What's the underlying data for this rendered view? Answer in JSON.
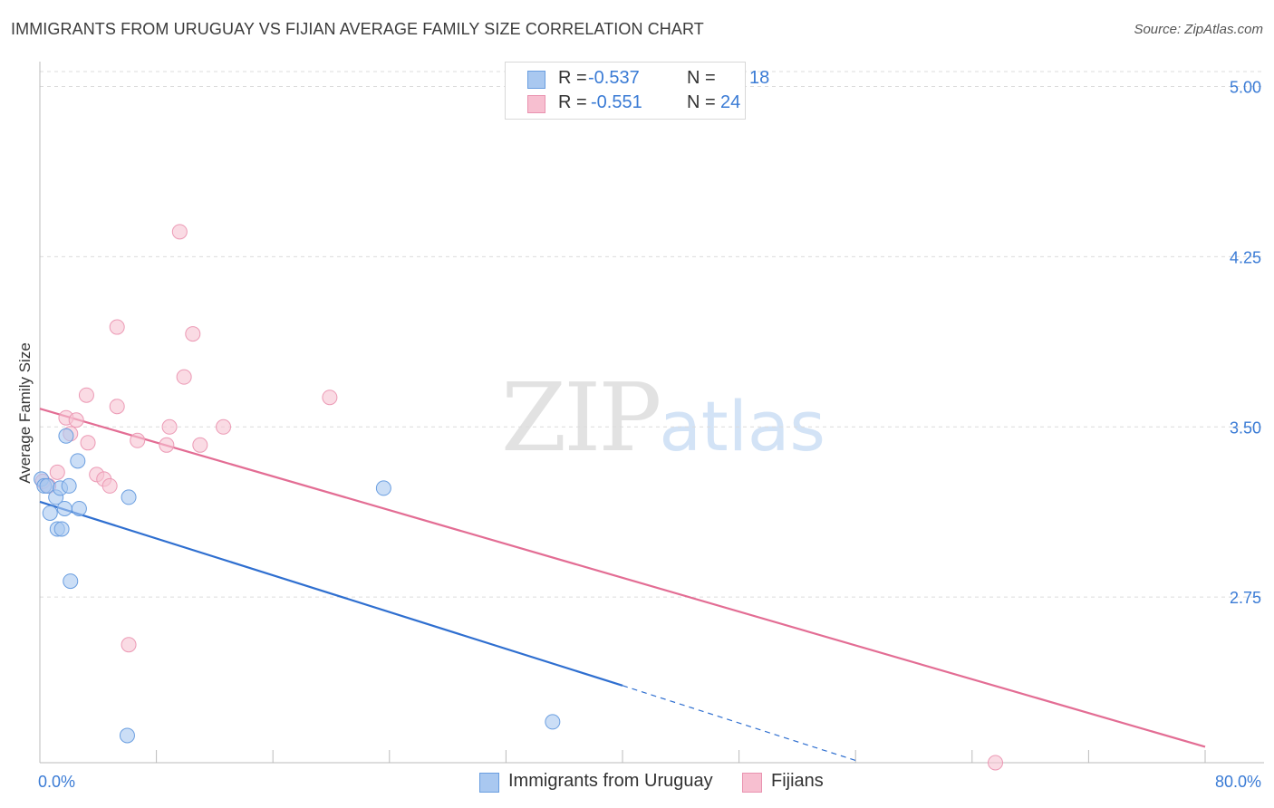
{
  "title": "IMMIGRANTS FROM URUGUAY VS FIJIAN AVERAGE FAMILY SIZE CORRELATION CHART",
  "source": "Source: ZipAtlas.com",
  "watermark": {
    "zip": "ZIP",
    "atlas": "atlas"
  },
  "legend": {
    "rows": [
      {
        "r_label": "R =",
        "r_value": "-0.537",
        "n_label": "N =",
        "n_value": "18",
        "color": "#a9c8f0",
        "border": "#6a9ee0"
      },
      {
        "r_label": "R =",
        "r_value": "-0.551",
        "n_label": "N =",
        "n_value": "24",
        "color": "#f7bfd0",
        "border": "#e993b0"
      }
    ]
  },
  "bottom_legend": [
    {
      "label": "Immigrants from Uruguay",
      "color": "#a9c8f0",
      "border": "#6a9ee0"
    },
    {
      "label": "Fijians",
      "color": "#f7bfd0",
      "border": "#e993b0"
    }
  ],
  "colors": {
    "blue_fill": "#a9c8f0",
    "blue_stroke": "#6a9ee0",
    "blue_line": "#2f6fd0",
    "pink_fill": "#f7c3d2",
    "pink_stroke": "#ec9ab5",
    "pink_line": "#e36d94",
    "axis_label": "#3a7bd5",
    "grid": "#dcdcdc"
  },
  "chart_data": {
    "type": "scatter",
    "title": "IMMIGRANTS FROM URUGUAY VS FIJIAN AVERAGE FAMILY SIZE CORRELATION CHART",
    "xlabel": "",
    "ylabel": "Average Family Size",
    "xlim": [
      0,
      80
    ],
    "ylim": [
      2.02,
      5.07
    ],
    "x_tick_labels": [
      {
        "value": 0,
        "label": "0.0%"
      },
      {
        "value": 80,
        "label": "80.0%"
      }
    ],
    "x_minor_ticks": [
      8,
      16,
      24,
      32,
      40,
      48,
      56,
      64,
      72,
      80
    ],
    "y_ticks": [
      {
        "value": 5.0,
        "label": "5.00"
      },
      {
        "value": 4.25,
        "label": "4.25"
      },
      {
        "value": 3.5,
        "label": "3.50"
      },
      {
        "value": 2.75,
        "label": "2.75"
      }
    ],
    "grid": true,
    "legend_position": "top-center",
    "series": [
      {
        "name": "Immigrants from Uruguay",
        "points": [
          [
            0.1,
            3.27
          ],
          [
            0.3,
            3.24
          ],
          [
            0.5,
            3.24
          ],
          [
            0.7,
            3.12
          ],
          [
            1.1,
            3.19
          ],
          [
            1.2,
            3.05
          ],
          [
            1.4,
            3.23
          ],
          [
            1.5,
            3.05
          ],
          [
            1.7,
            3.14
          ],
          [
            1.8,
            3.46
          ],
          [
            2.0,
            3.24
          ],
          [
            2.1,
            2.82
          ],
          [
            2.6,
            3.35
          ],
          [
            2.7,
            3.14
          ],
          [
            6.1,
            3.19
          ],
          [
            6.0,
            2.14
          ],
          [
            23.6,
            3.23
          ],
          [
            35.2,
            2.2
          ]
        ],
        "trend": {
          "x0": 0,
          "y0": 3.17,
          "x1": 40,
          "y1": 2.36,
          "dash_x1": 56,
          "dash_y1": 2.03
        }
      },
      {
        "name": "Fijians",
        "points": [
          [
            0.2,
            3.26
          ],
          [
            0.6,
            3.24
          ],
          [
            1.2,
            3.3
          ],
          [
            1.8,
            3.54
          ],
          [
            2.1,
            3.47
          ],
          [
            2.5,
            3.53
          ],
          [
            3.2,
            3.64
          ],
          [
            3.3,
            3.43
          ],
          [
            3.9,
            3.29
          ],
          [
            4.4,
            3.27
          ],
          [
            4.8,
            3.24
          ],
          [
            5.3,
            3.59
          ],
          [
            5.3,
            3.94
          ],
          [
            6.1,
            2.54
          ],
          [
            6.7,
            3.44
          ],
          [
            8.7,
            3.42
          ],
          [
            8.9,
            3.5
          ],
          [
            9.6,
            4.36
          ],
          [
            9.9,
            3.72
          ],
          [
            10.5,
            3.91
          ],
          [
            11.0,
            3.42
          ],
          [
            12.6,
            3.5
          ],
          [
            19.9,
            3.63
          ],
          [
            65.6,
            2.02
          ]
        ],
        "trend": {
          "x0": 0,
          "y0": 3.58,
          "x1": 80,
          "y1": 2.09
        }
      }
    ]
  }
}
